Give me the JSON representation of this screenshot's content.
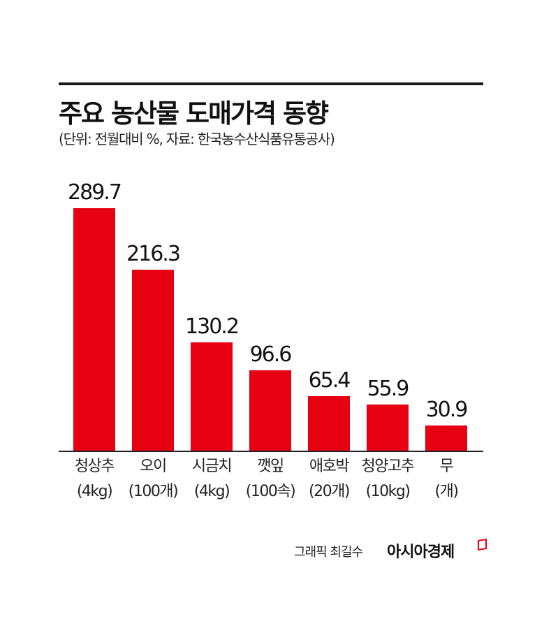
{
  "header": {
    "title": "주요 농산물 도매가격 동향",
    "subtitle": "(단위: 전월대비 %, 자료: 한국농수산식품유통공사)"
  },
  "chart_data": {
    "type": "bar",
    "title": "주요 농산물 도매가격 동향",
    "subtitle": "(단위: 전월대비 %, 자료: 한국농수산식품유통공사)",
    "categories": [
      "청상추 (4kg)",
      "오이 (100개)",
      "시금치 (4kg)",
      "깻잎 (100속)",
      "애호박 (20개)",
      "청양고추 (10kg)",
      "무 (개)"
    ],
    "category_names": [
      "청상추",
      "오이",
      "시금치",
      "깻잎",
      "애호박",
      "청양고추",
      "무"
    ],
    "category_units": [
      "(4kg)",
      "(100개)",
      "(4kg)",
      "(100속)",
      "(20개)",
      "(10kg)",
      "(개)"
    ],
    "values": [
      289.7,
      216.3,
      130.2,
      96.6,
      65.4,
      55.9,
      30.9
    ],
    "value_labels": [
      "289.7",
      "216.3",
      "130.2",
      "96.6",
      "65.4",
      "55.9",
      "30.9"
    ],
    "xlabel": "",
    "ylabel": "전월대비 %",
    "ylim": [
      0,
      300
    ],
    "grid": false,
    "legend": null,
    "bar_color": "#e60012"
  },
  "footer": {
    "credit": "그래픽 최길수",
    "brand": "아시아경제"
  }
}
